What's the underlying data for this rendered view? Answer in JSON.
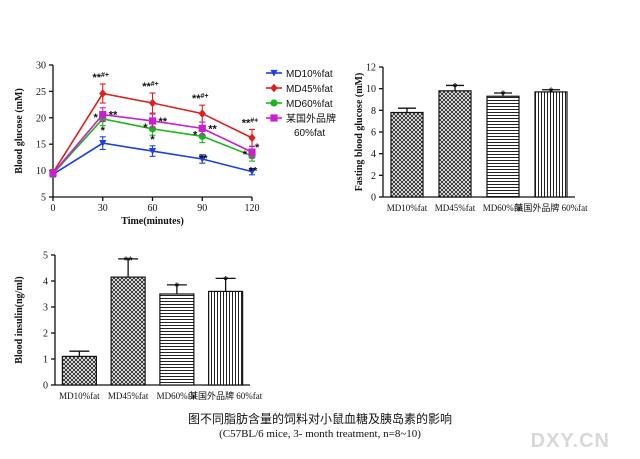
{
  "caption": "图不同脂肪含量的饲料对小鼠血糖及胰岛素的影响",
  "subcaption": "(C57BL/6  mice, 3- month treatment, n=8~10)",
  "watermark": "DXY.CN",
  "colors": {
    "md10": "#1f3fe0",
    "md45": "#e01f1f",
    "md60": "#18b818",
    "brand": "#c81fd0"
  },
  "chart_data": [
    {
      "type": "line",
      "ylabel": "Blood glucose (mM)",
      "xlabel": "Time(minutes)",
      "x": [
        0,
        30,
        60,
        90,
        120
      ],
      "xticks": [
        "0",
        "30",
        "60",
        "90",
        "120"
      ],
      "ylim": [
        5,
        30
      ],
      "yticks": [
        "5",
        "10",
        "15",
        "20",
        "25",
        "30"
      ],
      "legend_position": "top-right",
      "series": [
        {
          "name": "MD10%fat",
          "color": "#1f3fe0",
          "marker": "triangle-down",
          "values": [
            9.3,
            15.2,
            13.7,
            12.2,
            9.8
          ],
          "errors": [
            0.5,
            1.2,
            1.0,
            0.8,
            0.6
          ],
          "annotations": [
            "",
            "*",
            "*",
            "**",
            "**"
          ]
        },
        {
          "name": "MD45%fat",
          "color": "#e01f1f",
          "marker": "diamond",
          "values": [
            9.6,
            24.6,
            22.8,
            20.8,
            16.2
          ],
          "errors": [
            0.6,
            1.8,
            1.9,
            1.6,
            1.6
          ],
          "annotations": [
            "",
            "**#+",
            "**#+",
            "**#+",
            "**#+"
          ]
        },
        {
          "name": "MD60%fat",
          "color": "#18b818",
          "marker": "circle",
          "values": [
            9.4,
            19.8,
            17.9,
            16.5,
            12.8
          ],
          "errors": [
            0.5,
            1.3,
            1.2,
            1.2,
            1.0
          ],
          "annotations": [
            "",
            "*",
            "*",
            "*",
            "*"
          ]
        },
        {
          "name": "某国外品牌 60%fat",
          "legend_lines": [
            "某国外品牌",
            "60%fat"
          ],
          "color": "#c81fd0",
          "marker": "square",
          "values": [
            9.5,
            20.6,
            19.4,
            18.0,
            13.5
          ],
          "errors": [
            0.5,
            1.3,
            1.3,
            1.2,
            1.1
          ],
          "annotations": [
            "",
            "**",
            "**",
            "**",
            "*"
          ]
        }
      ]
    },
    {
      "type": "bar",
      "ylabel": "Fasting blood glucose (mM)",
      "categories": [
        "MD10%fat",
        "MD45%fat",
        "MD60%fat",
        "某国外品牌 60%fat"
      ],
      "values": [
        7.8,
        9.8,
        9.3,
        9.7
      ],
      "errors": [
        0.4,
        0.5,
        0.3,
        0.2
      ],
      "annotations": [
        "",
        "*",
        "*",
        "*"
      ],
      "patterns": [
        "crosshatch",
        "crosshatch",
        "hlines",
        "vlines"
      ],
      "ylim": [
        0,
        12
      ],
      "yticks": [
        "0",
        "2",
        "4",
        "6",
        "8",
        "10",
        "12"
      ]
    },
    {
      "type": "bar",
      "ylabel": "Blood insulin(ng/ml)",
      "categories": [
        "MD10%fat",
        "MD45%fat",
        "MD60%fat",
        "某国外品牌 60%fat"
      ],
      "values": [
        1.1,
        4.15,
        3.5,
        3.6
      ],
      "errors": [
        0.2,
        0.7,
        0.35,
        0.5
      ],
      "annotations": [
        "",
        "**",
        "*",
        "*"
      ],
      "patterns": [
        "crosshatch",
        "crosshatch",
        "hlines",
        "vlines"
      ],
      "ylim": [
        0,
        5
      ],
      "yticks": [
        "0",
        "1",
        "2",
        "3",
        "4",
        "5"
      ]
    }
  ]
}
